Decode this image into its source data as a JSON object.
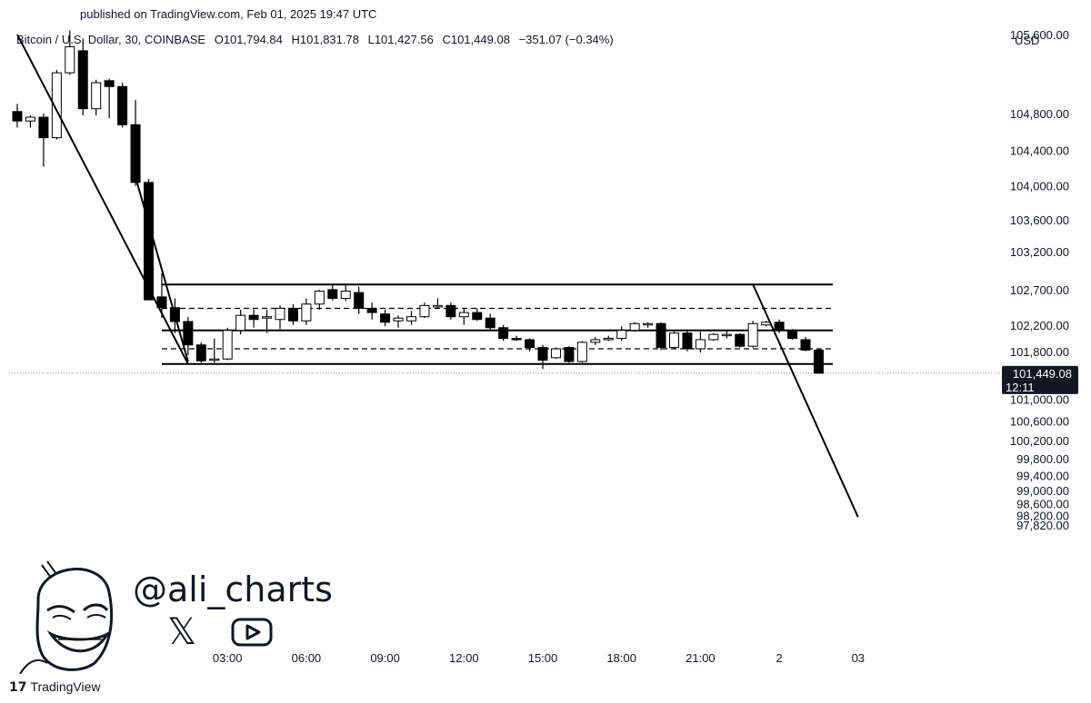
{
  "header": {
    "published": "published on TradingView.com, Feb 01, 2025 19:47 UTC"
  },
  "legend": {
    "symbol": "Bitcoin / U.S. Dollar, 30, COINBASE",
    "open": "O101,794.84",
    "high": "H101,831.78",
    "low": "L101,427.56",
    "close": "C101,449.08",
    "change": "−351.07 (−0.34%)"
  },
  "currency": "USD",
  "watermark": {
    "handle": "@ali_charts",
    "x_icon": "x-logo-icon",
    "youtube_icon": "youtube-play-icon"
  },
  "footer": {
    "logo_icon": "tradingview-logo-icon",
    "brand": "TradingView"
  },
  "chart_data": {
    "type": "candlestick",
    "y_ticks": [
      {
        "value": 105600,
        "label": "105,600.00"
      },
      {
        "value": 104800,
        "label": "104,800.00"
      },
      {
        "value": 104400,
        "label": "104,400.00"
      },
      {
        "value": 104000,
        "label": "104,000.00"
      },
      {
        "value": 103600,
        "label": "103,600.00"
      },
      {
        "value": 103200,
        "label": "103,200.00"
      },
      {
        "value": 102700,
        "label": "102,700.00"
      },
      {
        "value": 102200,
        "label": "102,200.00"
      },
      {
        "value": 101800,
        "label": "101,800.00"
      },
      {
        "value": 101000,
        "label": "101,000.00"
      },
      {
        "value": 100600,
        "label": "100,600.00"
      },
      {
        "value": 100200,
        "label": "100,200.00"
      },
      {
        "value": 99800,
        "label": "99,800.00"
      },
      {
        "value": 99400,
        "label": "99,400.00"
      },
      {
        "value": 99000,
        "label": "99,000.00"
      },
      {
        "value": 98600,
        "label": "98,600.00"
      },
      {
        "value": 98200,
        "label": "98,200.00"
      },
      {
        "value": 97820,
        "label": "97,820.00"
      }
    ],
    "x_ticks": [
      {
        "pos": 16,
        "label": "03:00"
      },
      {
        "pos": 22,
        "label": "06:00"
      },
      {
        "pos": 28,
        "label": "09:00"
      },
      {
        "pos": 34,
        "label": "12:00"
      },
      {
        "pos": 40,
        "label": "15:00"
      },
      {
        "pos": 46,
        "label": "18:00"
      },
      {
        "pos": 52,
        "label": "21:00"
      },
      {
        "pos": 58,
        "label": "2"
      },
      {
        "pos": 64,
        "label": "03"
      }
    ],
    "price_tag": {
      "value": 101449.08,
      "label": "101,449.08",
      "countdown": "12:11",
      "color": "#131722"
    },
    "colors": {
      "up": "#ffffff",
      "down": "#000000",
      "outline": "#000000",
      "line": "#000000"
    },
    "candles": [
      [
        104820,
        104900,
        104650,
        104720
      ],
      [
        104720,
        104780,
        104650,
        104760
      ],
      [
        104760,
        104800,
        104220,
        104540
      ],
      [
        104540,
        105250,
        104520,
        105220
      ],
      [
        105220,
        105640,
        105200,
        105480
      ],
      [
        105440,
        105560,
        104780,
        104850
      ],
      [
        104850,
        105150,
        104780,
        105120
      ],
      [
        105140,
        105160,
        104750,
        105080
      ],
      [
        105080,
        105120,
        104650,
        104680
      ],
      [
        104680,
        104940,
        104000,
        104040
      ],
      [
        104040,
        104080,
        102550,
        102560
      ],
      [
        102600,
        102920,
        102300,
        102450
      ],
      [
        102450,
        102580,
        102080,
        102250
      ],
      [
        102250,
        102320,
        101740,
        101900
      ],
      [
        101900,
        101940,
        101620,
        101650
      ],
      [
        101660,
        102000,
        101620,
        101680
      ],
      [
        101680,
        102160,
        101660,
        102120
      ],
      [
        102120,
        102420,
        102060,
        102340
      ],
      [
        102340,
        102420,
        102160,
        102280
      ],
      [
        102300,
        102420,
        102080,
        102320
      ],
      [
        102280,
        102480,
        102140,
        102440
      ],
      [
        102440,
        102500,
        102200,
        102260
      ],
      [
        102260,
        102580,
        102200,
        102500
      ],
      [
        102500,
        102700,
        102420,
        102680
      ],
      [
        102700,
        102760,
        102550,
        102580
      ],
      [
        102580,
        102760,
        102540,
        102680
      ],
      [
        102660,
        102740,
        102360,
        102440
      ],
      [
        102440,
        102520,
        102280,
        102380
      ],
      [
        102360,
        102420,
        102180,
        102240
      ],
      [
        102260,
        102340,
        102160,
        102300
      ],
      [
        102260,
        102400,
        102200,
        102320
      ],
      [
        102320,
        102520,
        102300,
        102480
      ],
      [
        102460,
        102580,
        102440,
        102480
      ],
      [
        102480,
        102520,
        102280,
        102320
      ],
      [
        102320,
        102440,
        102200,
        102380
      ],
      [
        102380,
        102440,
        102260,
        102280
      ],
      [
        102300,
        102360,
        102120,
        102160
      ],
      [
        102160,
        102200,
        101960,
        102000
      ],
      [
        102000,
        102040,
        101960,
        101980
      ],
      [
        101980,
        102000,
        101800,
        101860
      ],
      [
        101860,
        101900,
        101520,
        101660
      ],
      [
        101700,
        101860,
        101680,
        101840
      ],
      [
        101860,
        101880,
        101620,
        101640
      ],
      [
        101640,
        101960,
        101620,
        101940
      ],
      [
        101940,
        102020,
        101900,
        101980
      ],
      [
        101980,
        102040,
        101960,
        102000
      ],
      [
        102000,
        102180,
        101960,
        102120
      ],
      [
        102120,
        102240,
        102100,
        102220
      ],
      [
        102200,
        102240,
        102160,
        102220
      ],
      [
        102220,
        102240,
        101820,
        101860
      ],
      [
        101860,
        102100,
        101840,
        102080
      ],
      [
        102080,
        102120,
        101800,
        101840
      ],
      [
        101840,
        102100,
        101780,
        101980
      ],
      [
        101980,
        102080,
        101960,
        102060
      ],
      [
        102060,
        102120,
        102000,
        102060
      ],
      [
        102060,
        102080,
        101860,
        101880
      ],
      [
        101880,
        102260,
        101860,
        102220
      ],
      [
        102200,
        102260,
        102180,
        102240
      ],
      [
        102240,
        102280,
        102080,
        102120
      ],
      [
        102120,
        102140,
        101980,
        102000
      ],
      [
        101980,
        102020,
        101800,
        101820
      ],
      [
        101820,
        101840,
        101440,
        101449
      ]
    ],
    "drawings": {
      "channel_top": 102770,
      "channel_upper_mid": 102440,
      "channel_mid": 102120,
      "channel_lower_mid": 101840,
      "channel_bottom": 101600,
      "trendline_1": [
        [
          105600,
          0
        ],
        [
          101600,
          13
        ]
      ],
      "trendline_2": [
        [
          104100,
          9
        ],
        [
          101640,
          13
        ]
      ],
      "projection": [
        [
          102770,
          56
        ],
        [
          98140,
          64
        ]
      ]
    }
  }
}
